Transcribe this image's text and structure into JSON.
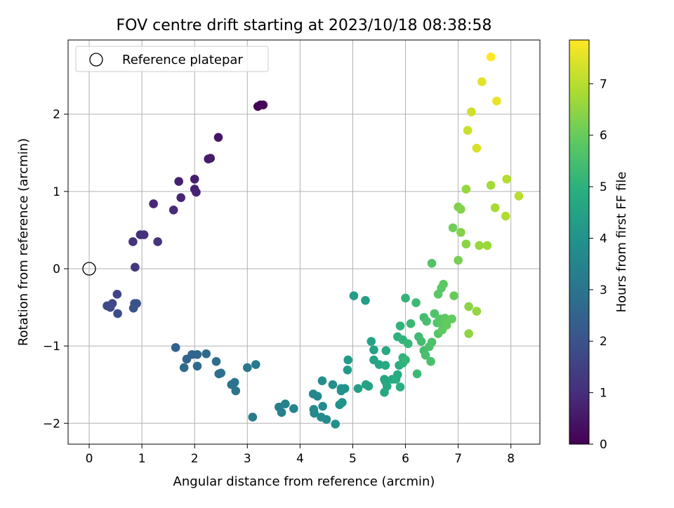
{
  "chart_data": {
    "type": "scatter",
    "title": "FOV centre drift starting at 2023/10/18 08:38:58",
    "xlabel": "Angular distance from reference (arcmin)",
    "ylabel": "Rotation from reference (arcmin)",
    "xlim": [
      -0.4,
      8.55
    ],
    "ylim": [
      -2.27,
      2.96
    ],
    "x_ticks": [
      0,
      1,
      2,
      3,
      4,
      5,
      6,
      7,
      8
    ],
    "y_ticks": [
      -2,
      -1,
      0,
      1,
      2
    ],
    "grid": true,
    "legend": {
      "position": "top-left",
      "entries": [
        "Reference platepar"
      ]
    },
    "colorbar": {
      "label": "Hours from first FF file",
      "range": [
        0,
        7.85
      ],
      "ticks": [
        0,
        1,
        2,
        3,
        4,
        5,
        6,
        7
      ],
      "colormap": "viridis"
    },
    "reference_point": {
      "x": 0,
      "y": 0,
      "label": "Reference platepar"
    },
    "points": [
      [
        3.2,
        2.1,
        0.02
      ],
      [
        3.25,
        2.12,
        0.05
      ],
      [
        3.3,
        2.12,
        0.08
      ],
      [
        2.45,
        1.7,
        0.45
      ],
      [
        2.3,
        1.43,
        0.55
      ],
      [
        2.26,
        1.42,
        0.58
      ],
      [
        2.0,
        1.16,
        0.65
      ],
      [
        1.7,
        1.13,
        0.7
      ],
      [
        2.0,
        1.03,
        0.75
      ],
      [
        2.03,
        0.99,
        0.78
      ],
      [
        1.74,
        0.92,
        0.82
      ],
      [
        1.22,
        0.84,
        0.9
      ],
      [
        1.6,
        0.76,
        0.95
      ],
      [
        0.97,
        0.44,
        1.05
      ],
      [
        1.04,
        0.44,
        1.1
      ],
      [
        0.83,
        0.35,
        1.15
      ],
      [
        1.3,
        0.35,
        1.18
      ],
      [
        0.87,
        0.02,
        1.3
      ],
      [
        0.53,
        -0.33,
        1.6
      ],
      [
        0.44,
        -0.45,
        1.7
      ],
      [
        0.34,
        -0.48,
        1.75
      ],
      [
        0.4,
        -0.5,
        1.8
      ],
      [
        0.54,
        -0.58,
        1.85
      ],
      [
        0.9,
        -0.45,
        1.9
      ],
      [
        0.86,
        -0.45,
        1.95
      ],
      [
        0.84,
        -0.51,
        2.0
      ],
      [
        1.64,
        -1.02,
        2.4
      ],
      [
        1.85,
        -1.17,
        2.5
      ],
      [
        1.95,
        -1.11,
        2.55
      ],
      [
        2.05,
        -1.11,
        2.6
      ],
      [
        2.22,
        -1.1,
        2.65
      ],
      [
        1.8,
        -1.28,
        2.7
      ],
      [
        2.05,
        -1.26,
        2.75
      ],
      [
        2.41,
        -1.2,
        2.8
      ],
      [
        2.46,
        -1.36,
        2.85
      ],
      [
        2.5,
        -1.35,
        2.9
      ],
      [
        2.7,
        -1.5,
        2.95
      ],
      [
        2.76,
        -1.47,
        3.0
      ],
      [
        2.78,
        -1.58,
        3.05
      ],
      [
        3.0,
        -1.28,
        3.1
      ],
      [
        3.16,
        -1.24,
        3.15
      ],
      [
        3.1,
        -1.92,
        3.2
      ],
      [
        3.6,
        -1.79,
        3.35
      ],
      [
        3.65,
        -1.86,
        3.4
      ],
      [
        3.72,
        -1.75,
        3.45
      ],
      [
        3.88,
        -1.81,
        3.5
      ],
      [
        4.25,
        -1.62,
        3.6
      ],
      [
        4.33,
        -1.65,
        3.65
      ],
      [
        4.27,
        -1.87,
        3.65
      ],
      [
        4.26,
        -1.82,
        3.7
      ],
      [
        4.4,
        -1.92,
        3.7
      ],
      [
        4.43,
        -1.78,
        3.75
      ],
      [
        4.5,
        -1.95,
        3.75
      ],
      [
        4.42,
        -1.45,
        3.8
      ],
      [
        4.62,
        -1.5,
        3.85
      ],
      [
        4.67,
        -2.01,
        3.9
      ],
      [
        4.75,
        -1.76,
        3.9
      ],
      [
        4.78,
        -1.58,
        3.95
      ],
      [
        4.85,
        -1.55,
        4.0
      ],
      [
        4.78,
        -1.55,
        4.0
      ],
      [
        4.8,
        -1.73,
        4.05
      ],
      [
        4.91,
        -1.18,
        4.2
      ],
      [
        4.9,
        -1.31,
        4.25
      ],
      [
        5.02,
        -0.35,
        4.3
      ],
      [
        5.24,
        -0.41,
        4.35
      ],
      [
        5.1,
        -1.55,
        4.4
      ],
      [
        5.25,
        -1.5,
        4.45
      ],
      [
        5.3,
        -1.52,
        4.45
      ],
      [
        5.35,
        -0.94,
        4.5
      ],
      [
        5.4,
        -1.05,
        4.5
      ],
      [
        5.4,
        -1.18,
        4.55
      ],
      [
        5.5,
        -1.24,
        4.6
      ],
      [
        5.6,
        -1.43,
        4.6
      ],
      [
        5.62,
        -1.46,
        4.65
      ],
      [
        5.6,
        -1.6,
        4.7
      ],
      [
        5.65,
        -1.52,
        4.7
      ],
      [
        5.63,
        -1.06,
        4.75
      ],
      [
        5.62,
        -1.25,
        4.75
      ],
      [
        5.75,
        -1.43,
        4.8
      ],
      [
        5.82,
        -1.43,
        4.85
      ],
      [
        5.85,
        -1.37,
        4.85
      ],
      [
        5.9,
        -1.53,
        4.9
      ],
      [
        5.88,
        -1.25,
        4.9
      ],
      [
        5.95,
        -1.22,
        5.0
      ],
      [
        5.85,
        -0.88,
        5.0
      ],
      [
        5.9,
        -0.74,
        5.05
      ],
      [
        5.95,
        -1.15,
        5.05
      ],
      [
        5.95,
        -0.92,
        5.1
      ],
      [
        6.0,
        -0.38,
        5.1
      ],
      [
        6.0,
        -1.18,
        5.15
      ],
      [
        6.05,
        -0.97,
        5.2
      ],
      [
        6.1,
        -0.71,
        5.25
      ],
      [
        6.2,
        -0.44,
        5.3
      ],
      [
        6.22,
        -1.36,
        5.3
      ],
      [
        6.25,
        -0.88,
        5.35
      ],
      [
        6.3,
        -0.94,
        5.4
      ],
      [
        6.35,
        -0.63,
        5.4
      ],
      [
        6.35,
        -1.06,
        5.45
      ],
      [
        6.38,
        -1.12,
        5.5
      ],
      [
        6.4,
        -0.68,
        5.5
      ],
      [
        6.45,
        -1.01,
        5.55
      ],
      [
        6.48,
        -1.2,
        5.55
      ],
      [
        6.5,
        -0.95,
        5.6
      ],
      [
        6.5,
        0.07,
        5.65
      ],
      [
        6.55,
        -0.58,
        5.65
      ],
      [
        6.6,
        -0.7,
        5.7
      ],
      [
        6.62,
        -0.84,
        5.75
      ],
      [
        6.65,
        -0.65,
        5.75
      ],
      [
        6.62,
        -0.33,
        5.8
      ],
      [
        6.68,
        -0.25,
        5.8
      ],
      [
        6.7,
        -0.72,
        5.85
      ],
      [
        6.72,
        -0.2,
        5.85
      ],
      [
        6.75,
        -0.64,
        5.9
      ],
      [
        6.7,
        -0.79,
        5.9
      ],
      [
        6.78,
        -0.73,
        5.95
      ],
      [
        6.88,
        -0.65,
        5.95
      ],
      [
        6.92,
        -0.35,
        6.0
      ],
      [
        6.9,
        0.53,
        6.1
      ],
      [
        7.0,
        0.11,
        6.2
      ],
      [
        7.0,
        0.8,
        6.3
      ],
      [
        7.05,
        0.77,
        6.35
      ],
      [
        7.05,
        0.47,
        6.35
      ],
      [
        7.15,
        0.32,
        6.45
      ],
      [
        7.2,
        -0.49,
        6.45
      ],
      [
        7.2,
        -0.84,
        6.5
      ],
      [
        7.35,
        -0.55,
        6.55
      ],
      [
        7.4,
        0.3,
        6.6
      ],
      [
        7.55,
        0.3,
        6.65
      ],
      [
        7.15,
        1.03,
        6.6
      ],
      [
        7.62,
        1.08,
        6.75
      ],
      [
        7.7,
        0.79,
        6.8
      ],
      [
        7.9,
        0.68,
        6.9
      ],
      [
        7.92,
        1.16,
        6.95
      ],
      [
        8.15,
        0.94,
        7.0
      ],
      [
        7.18,
        1.79,
        7.2
      ],
      [
        7.25,
        2.03,
        7.25
      ],
      [
        7.35,
        1.56,
        7.4
      ],
      [
        7.45,
        2.42,
        7.5
      ],
      [
        7.73,
        2.17,
        7.6
      ],
      [
        7.62,
        2.74,
        7.85
      ]
    ]
  }
}
